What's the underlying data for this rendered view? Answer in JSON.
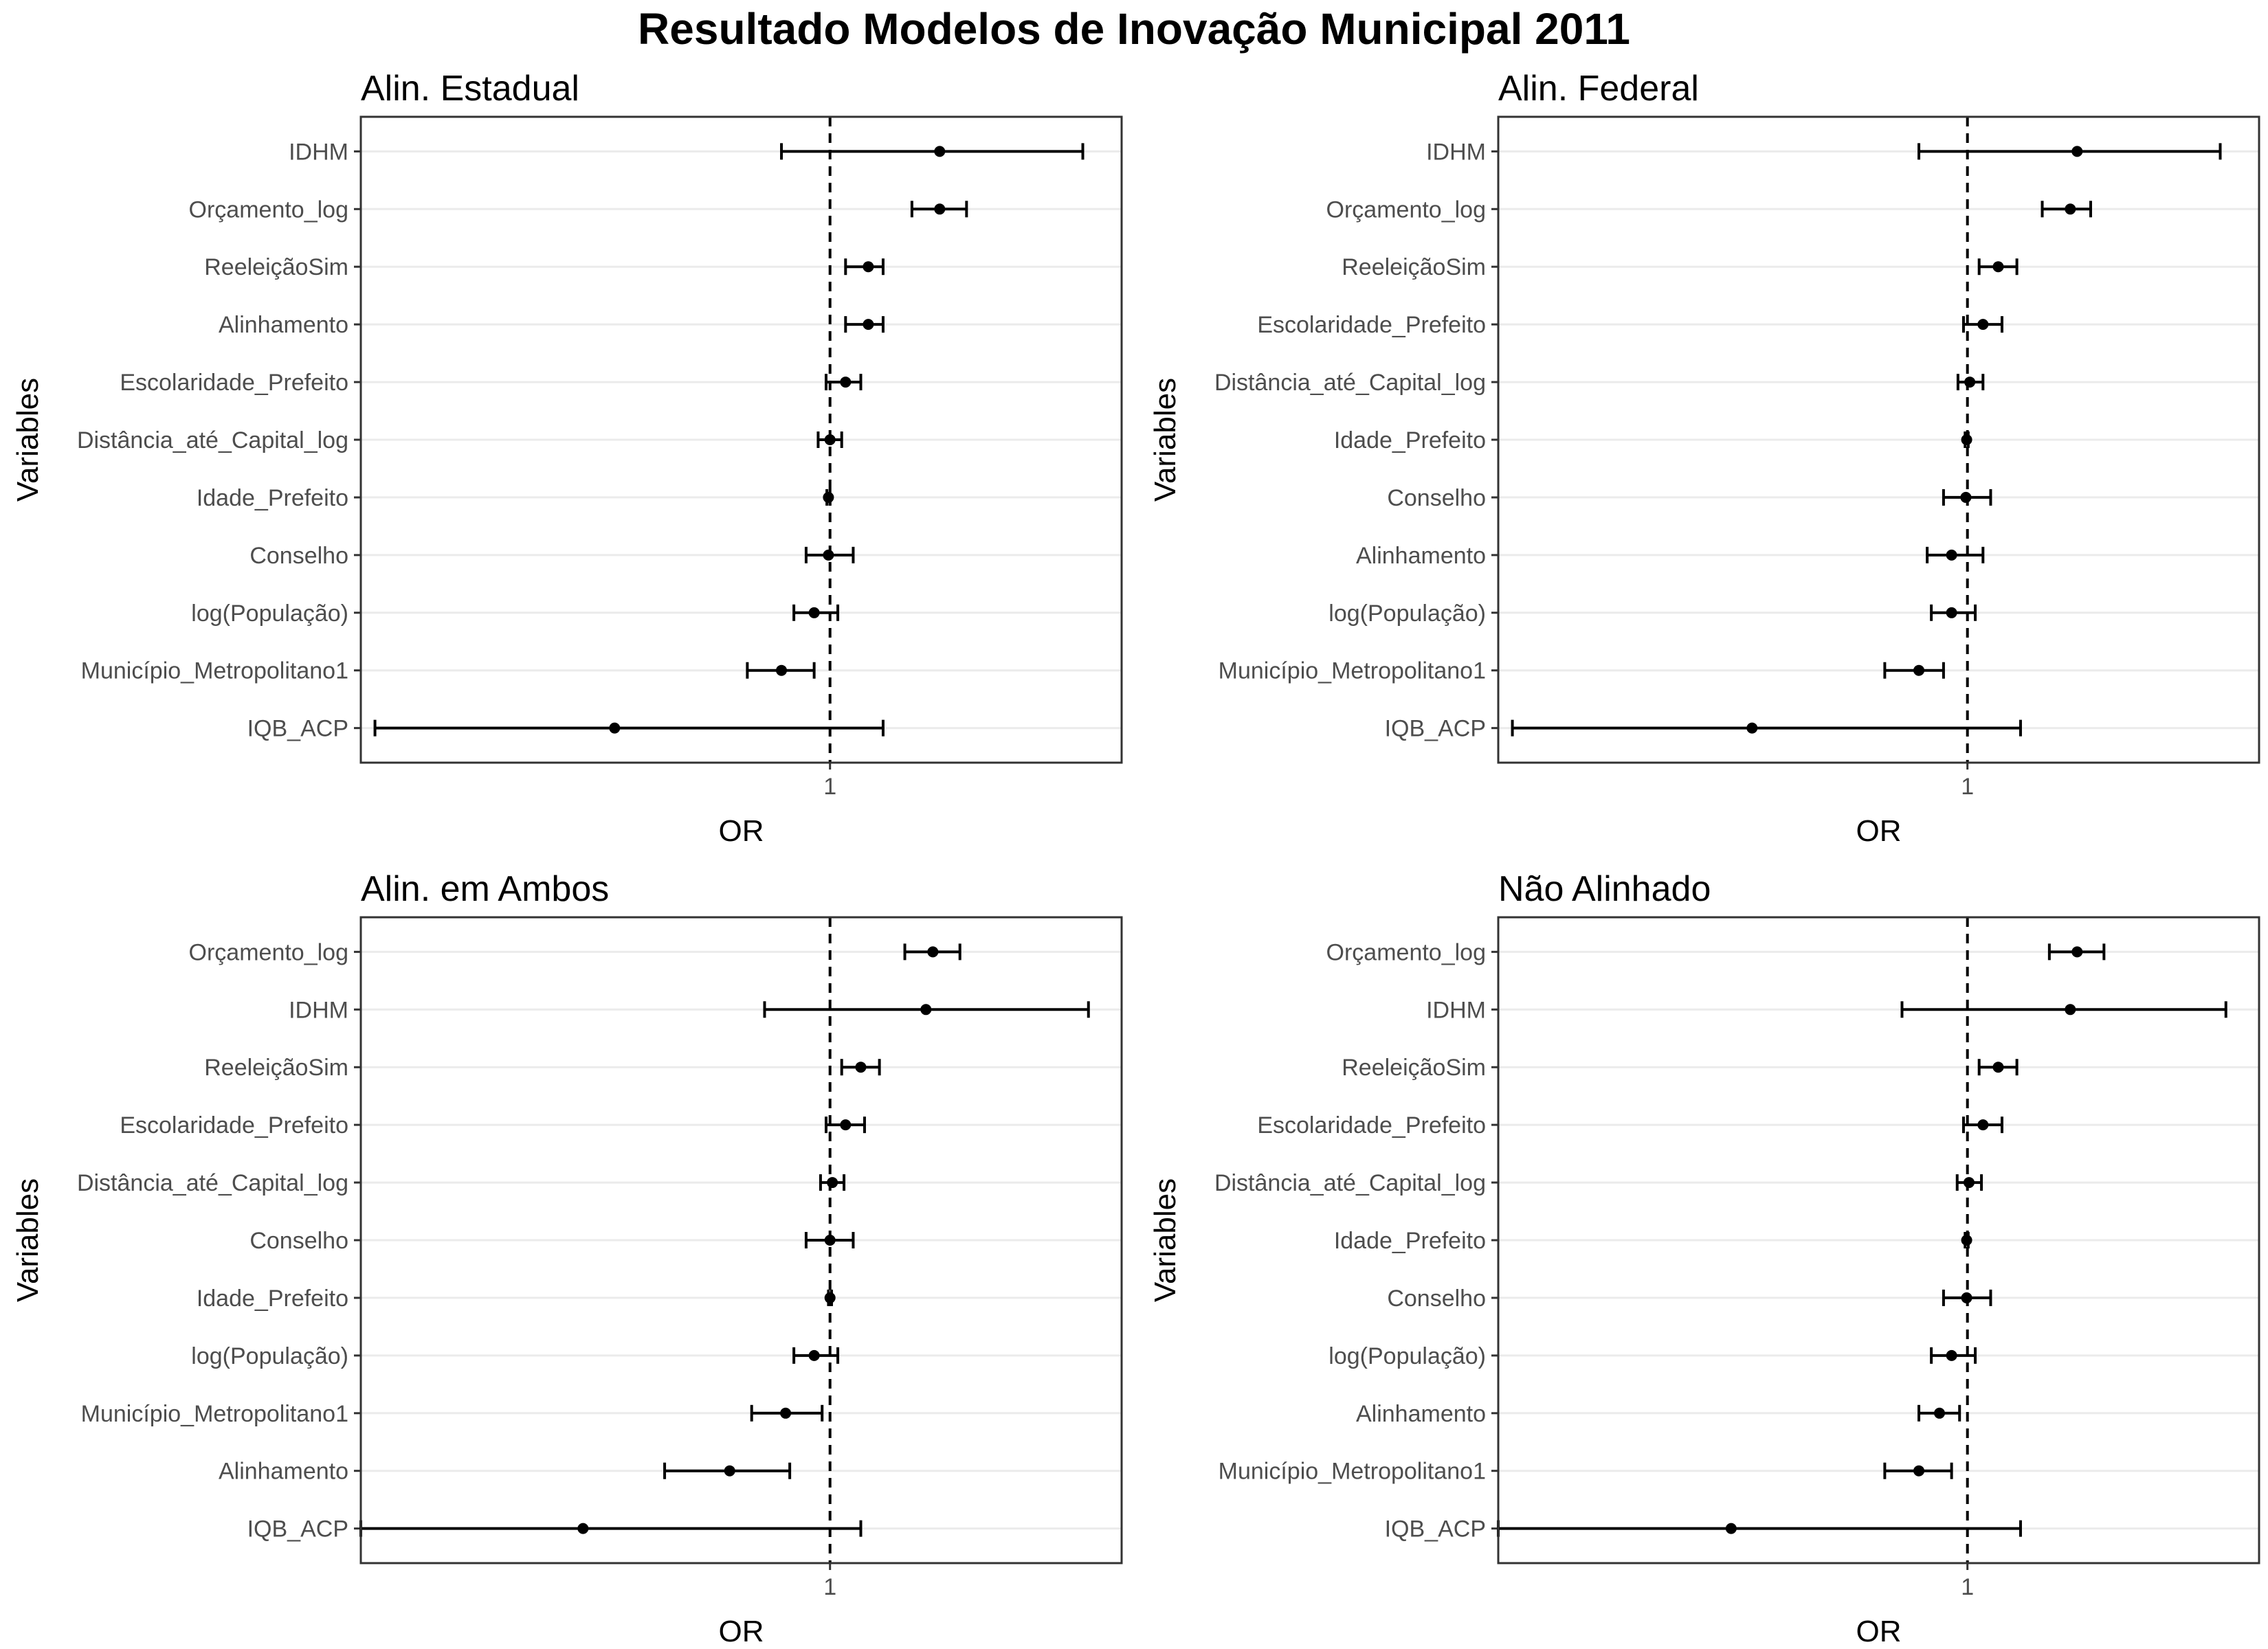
{
  "title": "Resultado Modelos de Inovação Municipal 2011",
  "colors": {
    "point": "#000000",
    "gridline": "#ebebeb",
    "panel_border": "#333333",
    "tick_label": "#4d4d4d"
  },
  "chart_data": [
    {
      "type": "forest",
      "title": "Alin. Estadual",
      "xlabel": "OR",
      "ylabel": "Variables",
      "x_ticks": [
        1
      ],
      "x_scale": "log",
      "xlim": [
        0.55,
        1.45
      ],
      "reference_line": 1,
      "grid": true,
      "rows": [
        {
          "label": "IDHM",
          "or": 1.15,
          "low": 0.94,
          "high": 1.38
        },
        {
          "label": "Orçamento_log",
          "or": 1.15,
          "low": 1.11,
          "high": 1.19
        },
        {
          "label": "ReeleiçãoSim",
          "or": 1.05,
          "low": 1.02,
          "high": 1.07
        },
        {
          "label": "Alinhamento",
          "or": 1.05,
          "low": 1.02,
          "high": 1.07
        },
        {
          "label": "Escolaridade_Prefeito",
          "or": 1.02,
          "low": 0.995,
          "high": 1.04
        },
        {
          "label": "Distância_até_Capital_log",
          "or": 1.0,
          "low": 0.985,
          "high": 1.015
        },
        {
          "label": "Idade_Prefeito",
          "or": 0.998,
          "low": 0.996,
          "high": 1.0
        },
        {
          "label": "Conselho",
          "or": 0.998,
          "low": 0.97,
          "high": 1.03
        },
        {
          "label": "log(População)",
          "or": 0.98,
          "low": 0.955,
          "high": 1.01
        },
        {
          "label": "Município_Metropolitano1",
          "or": 0.94,
          "low": 0.9,
          "high": 0.98
        },
        {
          "label": "IQB_ACP",
          "or": 0.76,
          "low": 0.56,
          "high": 1.07
        }
      ]
    },
    {
      "type": "forest",
      "title": "Alin. Federal",
      "xlabel": "OR",
      "ylabel": "Variables",
      "x_ticks": [
        1
      ],
      "x_scale": "log",
      "xlim": [
        0.55,
        1.45
      ],
      "reference_line": 1,
      "grid": true,
      "rows": [
        {
          "label": "IDHM",
          "or": 1.15,
          "low": 0.94,
          "high": 1.38
        },
        {
          "label": "Orçamento_log",
          "or": 1.14,
          "low": 1.1,
          "high": 1.17
        },
        {
          "label": "ReeleiçãoSim",
          "or": 1.04,
          "low": 1.015,
          "high": 1.065
        },
        {
          "label": "Escolaridade_Prefeito",
          "or": 1.02,
          "low": 0.995,
          "high": 1.045
        },
        {
          "label": "Distância_até_Capital_log",
          "or": 1.003,
          "low": 0.988,
          "high": 1.02
        },
        {
          "label": "Idade_Prefeito",
          "or": 0.999,
          "low": 0.997,
          "high": 1.001
        },
        {
          "label": "Conselho",
          "or": 0.998,
          "low": 0.97,
          "high": 1.03
        },
        {
          "label": "Alinhamento",
          "or": 0.98,
          "low": 0.95,
          "high": 1.02
        },
        {
          "label": "log(População)",
          "or": 0.98,
          "low": 0.955,
          "high": 1.01
        },
        {
          "label": "Município_Metropolitano1",
          "or": 0.94,
          "low": 0.9,
          "high": 0.97
        },
        {
          "label": "IQB_ACP",
          "or": 0.76,
          "low": 0.56,
          "high": 1.07
        }
      ]
    },
    {
      "type": "forest",
      "title": "Alin. em Ambos",
      "xlabel": "OR",
      "ylabel": "Variables",
      "x_ticks": [
        1
      ],
      "x_scale": "log",
      "xlim": [
        0.55,
        1.45
      ],
      "reference_line": 1,
      "grid": true,
      "rows": [
        {
          "label": "Orçamento_log",
          "or": 1.14,
          "low": 1.1,
          "high": 1.18
        },
        {
          "label": "IDHM",
          "or": 1.13,
          "low": 0.92,
          "high": 1.39
        },
        {
          "label": "ReeleiçãoSim",
          "or": 1.04,
          "low": 1.015,
          "high": 1.065
        },
        {
          "label": "Escolaridade_Prefeito",
          "or": 1.02,
          "low": 0.995,
          "high": 1.045
        },
        {
          "label": "Distância_até_Capital_log",
          "or": 1.003,
          "low": 0.988,
          "high": 1.018
        },
        {
          "label": "Conselho",
          "or": 1.0,
          "low": 0.97,
          "high": 1.03
        },
        {
          "label": "Idade_Prefeito",
          "or": 1.0,
          "low": 0.998,
          "high": 1.002
        },
        {
          "label": "log(População)",
          "or": 0.98,
          "low": 0.955,
          "high": 1.01
        },
        {
          "label": "Município_Metropolitano1",
          "or": 0.945,
          "low": 0.905,
          "high": 0.99
        },
        {
          "label": "Alinhamento",
          "or": 0.88,
          "low": 0.81,
          "high": 0.95
        },
        {
          "label": "IQB_ACP",
          "or": 0.73,
          "low": 0.55,
          "high": 1.04
        }
      ]
    },
    {
      "type": "forest",
      "title": "Não Alinhado",
      "xlabel": "OR",
      "ylabel": "Variables",
      "x_ticks": [
        1
      ],
      "x_scale": "log",
      "xlim": [
        0.55,
        1.45
      ],
      "reference_line": 1,
      "grid": true,
      "rows": [
        {
          "label": "Orçamento_log",
          "or": 1.15,
          "low": 1.11,
          "high": 1.19
        },
        {
          "label": "IDHM",
          "or": 1.14,
          "low": 0.92,
          "high": 1.39
        },
        {
          "label": "ReeleiçãoSim",
          "or": 1.04,
          "low": 1.015,
          "high": 1.065
        },
        {
          "label": "Escolaridade_Prefeito",
          "or": 1.02,
          "low": 0.995,
          "high": 1.045
        },
        {
          "label": "Distância_até_Capital_log",
          "or": 1.002,
          "low": 0.987,
          "high": 1.018
        },
        {
          "label": "Idade_Prefeito",
          "or": 0.999,
          "low": 0.997,
          "high": 1.001
        },
        {
          "label": "Conselho",
          "or": 0.999,
          "low": 0.97,
          "high": 1.03
        },
        {
          "label": "log(População)",
          "or": 0.98,
          "low": 0.955,
          "high": 1.01
        },
        {
          "label": "Alinhamento",
          "or": 0.965,
          "low": 0.94,
          "high": 0.99
        },
        {
          "label": "Município_Metropolitano1",
          "or": 0.94,
          "low": 0.9,
          "high": 0.98
        },
        {
          "label": "IQB_ACP",
          "or": 0.74,
          "low": 0.55,
          "high": 1.07
        }
      ]
    }
  ]
}
